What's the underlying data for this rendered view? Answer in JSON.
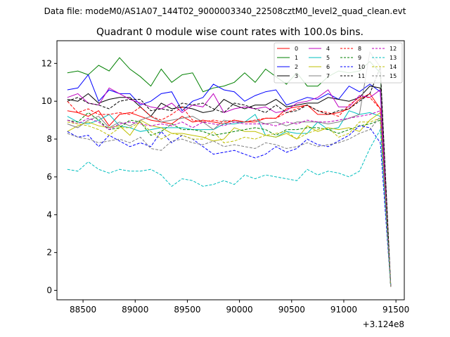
{
  "chart_data": {
    "type": "line",
    "suptitle": "Data file: modeM0/AS1A07_144T02_9000003340_22508cztM0_level2_quad_clean.evt",
    "title": "Quadrant 0 module wise count rates with 100.0s bins.",
    "xlabel": "",
    "ylabel": "",
    "x_offset_label": "+3.124e8",
    "xlim": [
      88250,
      91580
    ],
    "ylim": [
      -0.5,
      13.2
    ],
    "x_ticks": [
      88500,
      89000,
      89500,
      90000,
      90500,
      91000,
      91500
    ],
    "y_ticks": [
      0,
      2,
      4,
      6,
      8,
      10,
      12
    ],
    "x_tick_labels": [
      "88500",
      "89000",
      "89500",
      "90000",
      "90500",
      "91000",
      "91500"
    ],
    "y_tick_labels": [
      "0",
      "2",
      "4",
      "6",
      "8",
      "10",
      "12"
    ],
    "grid": false,
    "legend_position": "top-right",
    "legend_columns": 4,
    "x": [
      88350,
      88450,
      88550,
      88650,
      88750,
      88850,
      88950,
      89050,
      89150,
      89250,
      89350,
      89450,
      89550,
      89650,
      89750,
      89850,
      89950,
      90050,
      90150,
      90250,
      90350,
      90450,
      90550,
      90650,
      90750,
      90850,
      90950,
      91050,
      91150,
      91250,
      91350,
      91450
    ],
    "series": [
      {
        "name": "0",
        "color": "#ff0000",
        "dash": "solid",
        "values": [
          9.5,
          9.4,
          9.2,
          9.5,
          8.7,
          9.3,
          9.4,
          9.2,
          9.0,
          8.9,
          8.8,
          9.2,
          8.9,
          9.0,
          8.9,
          8.8,
          9.0,
          8.9,
          8.9,
          9.1,
          9.1,
          9.6,
          9.7,
          9.8,
          9.3,
          9.3,
          9.4,
          9.6,
          10.1,
          10.4,
          9.6,
          0.2
        ]
      },
      {
        "name": "1",
        "color": "#008000",
        "dash": "solid",
        "values": [
          11.5,
          11.6,
          11.4,
          11.9,
          11.6,
          12.3,
          11.7,
          11.3,
          10.8,
          11.7,
          11.0,
          11.4,
          11.5,
          10.5,
          10.7,
          10.8,
          11.0,
          11.5,
          11.0,
          11.7,
          11.3,
          10.9,
          11.5,
          10.8,
          10.8,
          11.3,
          11.6,
          11.5,
          11.6,
          12.1,
          11.5,
          0.2
        ]
      },
      {
        "name": "2",
        "color": "#0000ff",
        "dash": "solid",
        "values": [
          10.6,
          10.7,
          11.4,
          10.0,
          10.6,
          10.4,
          10.4,
          9.8,
          10.0,
          10.4,
          10.5,
          9.5,
          10.0,
          10.2,
          10.9,
          10.6,
          10.5,
          10.0,
          10.3,
          10.5,
          10.6,
          9.8,
          10.0,
          10.2,
          10.1,
          10.4,
          10.1,
          10.8,
          10.5,
          10.9,
          10.5,
          0.3
        ]
      },
      {
        "name": "3",
        "color": "#000000",
        "dash": "solid",
        "values": [
          10.1,
          10.0,
          10.4,
          9.9,
          10.1,
          10.2,
          10.2,
          9.7,
          9.2,
          9.9,
          9.6,
          9.7,
          9.6,
          9.4,
          9.5,
          10.1,
          9.8,
          9.6,
          9.8,
          9.8,
          10.1,
          9.7,
          9.8,
          9.9,
          9.9,
          10.2,
          10.1,
          10.0,
          10.2,
          10.8,
          10.7,
          0.2
        ]
      },
      {
        "name": "4",
        "color": "#bf00bf",
        "dash": "solid",
        "values": [
          10.2,
          10.4,
          9.9,
          9.8,
          10.7,
          10.4,
          10.1,
          9.9,
          9.7,
          9.6,
          9.9,
          9.4,
          9.8,
          9.7,
          10.4,
          9.4,
          9.6,
          9.7,
          9.6,
          9.7,
          9.4,
          9.5,
          9.9,
          10.0,
          10.2,
          10.6,
          9.7,
          9.7,
          10.3,
          10.2,
          10.6,
          0.3
        ]
      },
      {
        "name": "5",
        "color": "#00bfbf",
        "dash": "solid",
        "values": [
          9.2,
          8.9,
          8.8,
          9.0,
          9.3,
          8.7,
          8.6,
          8.4,
          8.5,
          8.6,
          8.6,
          8.6,
          8.5,
          8.5,
          8.5,
          8.8,
          8.8,
          8.9,
          9.3,
          8.2,
          8.1,
          8.4,
          8.3,
          8.3,
          8.9,
          8.5,
          8.6,
          9.5,
          9.3,
          9.4,
          9.2,
          0.2
        ]
      },
      {
        "name": "6",
        "color": "#bfbf00",
        "dash": "solid",
        "values": [
          8.4,
          8.7,
          8.9,
          8.7,
          8.6,
          8.7,
          8.2,
          9.0,
          8.7,
          8.6,
          8.3,
          8.3,
          8.2,
          8.1,
          7.9,
          8.0,
          8.6,
          8.4,
          8.4,
          8.2,
          8.1,
          8.3,
          8.0,
          8.7,
          8.4,
          8.6,
          8.5,
          8.6,
          8.4,
          9.0,
          9.4,
          0.2
        ]
      },
      {
        "name": "7",
        "color": "#808080",
        "dash": "solid",
        "values": [
          8.8,
          8.6,
          9.0,
          9.2,
          8.6,
          8.9,
          8.7,
          9.0,
          9.2,
          8.9,
          9.0,
          9.1,
          9.2,
          8.9,
          8.5,
          9.0,
          8.9,
          8.9,
          9.0,
          8.8,
          8.9,
          8.7,
          8.9,
          8.9,
          8.9,
          8.8,
          8.9,
          9.1,
          9.3,
          12.6,
          11.8,
          0.3
        ]
      },
      {
        "name": "8",
        "color": "#ff0000",
        "dash": "dashed",
        "values": [
          10.0,
          9.4,
          9.6,
          9.3,
          9.3,
          9.4,
          9.3,
          9.7,
          9.2,
          9.0,
          9.3,
          9.7,
          9.0,
          8.9,
          9.0,
          8.9,
          9.0,
          8.9,
          9.0,
          9.1,
          9.1,
          9.4,
          9.6,
          9.8,
          9.5,
          9.4,
          9.2,
          9.8,
          10.2,
          10.2,
          9.6,
          0.2
        ]
      },
      {
        "name": "9",
        "color": "#008000",
        "dash": "dashed",
        "values": [
          9.0,
          8.9,
          9.4,
          9.0,
          8.5,
          8.6,
          9.0,
          8.9,
          8.2,
          8.4,
          8.8,
          8.5,
          8.5,
          8.4,
          8.2,
          8.3,
          8.4,
          8.5,
          8.6,
          8.5,
          8.2,
          8.5,
          8.5,
          8.6,
          8.6,
          8.5,
          8.3,
          8.5,
          8.7,
          8.8,
          9.0,
          0.2
        ]
      },
      {
        "name": "10",
        "color": "#0000ff",
        "dash": "dashed",
        "values": [
          8.4,
          8.1,
          8.2,
          7.6,
          8.2,
          7.9,
          7.6,
          7.8,
          7.6,
          8.4,
          7.8,
          8.2,
          8.0,
          7.6,
          7.2,
          7.3,
          7.4,
          7.2,
          7.0,
          7.2,
          7.6,
          7.3,
          7.5,
          8.0,
          7.7,
          7.6,
          7.9,
          8.2,
          8.7,
          8.6,
          7.8,
          0.2
        ]
      },
      {
        "name": "11",
        "color": "#000000",
        "dash": "dashed",
        "values": [
          10.0,
          10.2,
          9.9,
          9.8,
          9.6,
          10.0,
          10.1,
          10.1,
          9.5,
          9.6,
          9.5,
          9.9,
          9.8,
          9.9,
          9.6,
          9.4,
          9.9,
          9.8,
          9.6,
          9.4,
          9.8,
          9.4,
          9.5,
          9.8,
          9.5,
          9.3,
          9.5,
          9.6,
          10.0,
          10.4,
          11.8,
          0.2
        ]
      },
      {
        "name": "12",
        "color": "#bf00bf",
        "dash": "dashed",
        "values": [
          9.0,
          8.8,
          9.1,
          8.9,
          8.5,
          8.8,
          8.9,
          8.8,
          8.7,
          8.8,
          8.7,
          8.9,
          8.6,
          8.9,
          8.8,
          8.7,
          8.9,
          8.8,
          8.8,
          8.8,
          8.7,
          8.9,
          8.8,
          9.0,
          8.9,
          8.9,
          9.0,
          9.1,
          9.2,
          9.3,
          9.5,
          0.2
        ]
      },
      {
        "name": "13",
        "color": "#00bfbf",
        "dash": "dashed",
        "values": [
          6.4,
          6.3,
          6.8,
          6.4,
          6.2,
          6.4,
          6.3,
          6.3,
          6.4,
          6.1,
          5.5,
          5.9,
          5.8,
          5.5,
          5.6,
          5.8,
          5.6,
          6.1,
          5.9,
          6.1,
          6.0,
          5.9,
          5.8,
          6.4,
          6.1,
          6.3,
          6.2,
          6.0,
          6.3,
          7.5,
          8.5,
          0.2
        ]
      },
      {
        "name": "14",
        "color": "#bfbf00",
        "dash": "dashed",
        "values": [
          8.9,
          8.8,
          8.7,
          8.5,
          8.2,
          8.6,
          8.6,
          8.9,
          8.4,
          8.0,
          8.3,
          8.2,
          8.0,
          8.0,
          8.4,
          7.8,
          7.9,
          8.1,
          8.0,
          8.2,
          8.3,
          8.4,
          8.0,
          8.3,
          8.5,
          8.6,
          8.1,
          8.3,
          8.9,
          8.9,
          9.1,
          0.2
        ]
      },
      {
        "name": "15",
        "color": "#808080",
        "dash": "dashed",
        "values": [
          8.3,
          8.1,
          8.0,
          7.8,
          7.9,
          8.0,
          7.8,
          8.1,
          7.5,
          7.4,
          7.9,
          8.0,
          7.8,
          7.7,
          7.9,
          7.6,
          7.7,
          7.6,
          7.5,
          7.8,
          7.7,
          7.5,
          7.6,
          7.8,
          7.6,
          7.7,
          7.8,
          8.0,
          8.3,
          8.5,
          9.2,
          0.2
        ]
      }
    ]
  }
}
